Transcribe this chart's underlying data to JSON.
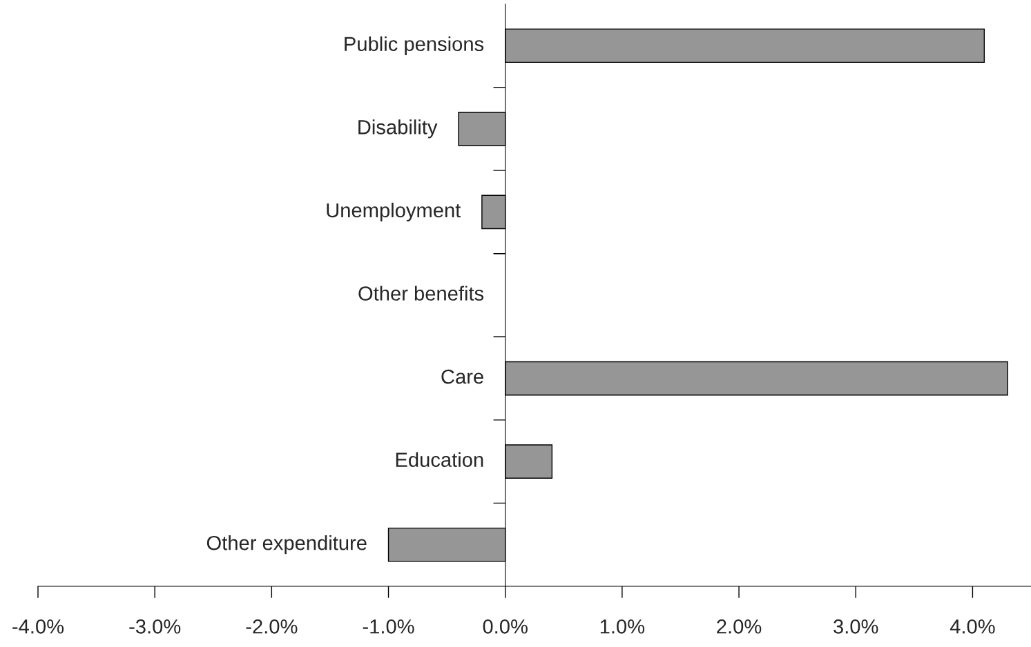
{
  "chart_data": {
    "type": "bar",
    "orientation": "horizontal",
    "categories": [
      "Public pensions",
      "Disability",
      "Unemployment",
      "Other benefits",
      "Care",
      "Education",
      "Other expenditure"
    ],
    "values": [
      4.1,
      -0.4,
      -0.2,
      0.0,
      4.3,
      0.4,
      -1.0
    ],
    "color": "#969696",
    "xlim": [
      -4.0,
      4.5
    ],
    "xticks": [
      {
        "value": -4.0,
        "label": "-4.0%"
      },
      {
        "value": -3.0,
        "label": "-3.0%"
      },
      {
        "value": -2.0,
        "label": "-2.0%"
      },
      {
        "value": -1.0,
        "label": "-1.0%"
      },
      {
        "value": 0.0,
        "label": "0.0%"
      },
      {
        "value": 1.0,
        "label": "1.0%"
      },
      {
        "value": 2.0,
        "label": "2.0%"
      },
      {
        "value": 3.0,
        "label": "3.0%"
      },
      {
        "value": 4.0,
        "label": "4.0%"
      }
    ],
    "grid": false,
    "legend": false
  }
}
